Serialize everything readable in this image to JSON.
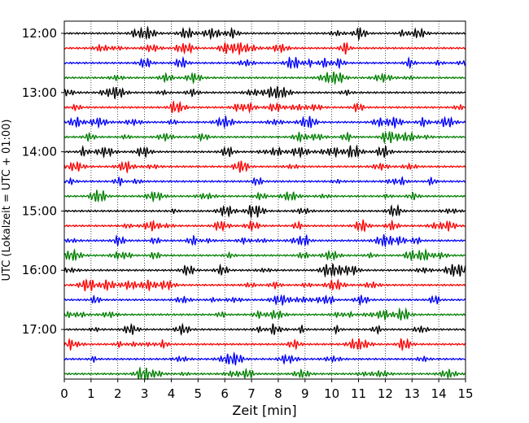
{
  "chart_data": {
    "type": "line",
    "xlabel": "Zeit  [min]",
    "ylabel": "UTC (Lokalzeit = UTC + 01:00)",
    "xlim": [
      0,
      15
    ],
    "x_ticks": [
      "0",
      "1",
      "2",
      "3",
      "4",
      "5",
      "6",
      "7",
      "8",
      "9",
      "10",
      "11",
      "12",
      "13",
      "14",
      "15"
    ],
    "y_ticks": [
      "12:00",
      "13:00",
      "14:00",
      "15:00",
      "16:00",
      "17:00"
    ],
    "grid": "vertical dotted",
    "trace_colors": [
      "#000000",
      "#ff0000",
      "#0000ff",
      "#008000"
    ],
    "traces": [
      {
        "start": "12:00",
        "color": "#000000"
      },
      {
        "start": "12:15",
        "color": "#ff0000"
      },
      {
        "start": "12:30",
        "color": "#0000ff"
      },
      {
        "start": "12:45",
        "color": "#008000"
      },
      {
        "start": "13:00",
        "color": "#000000"
      },
      {
        "start": "13:15",
        "color": "#ff0000"
      },
      {
        "start": "13:30",
        "color": "#0000ff"
      },
      {
        "start": "13:45",
        "color": "#008000"
      },
      {
        "start": "14:00",
        "color": "#000000"
      },
      {
        "start": "14:15",
        "color": "#ff0000"
      },
      {
        "start": "14:30",
        "color": "#0000ff"
      },
      {
        "start": "14:45",
        "color": "#008000"
      },
      {
        "start": "15:00",
        "color": "#000000"
      },
      {
        "start": "15:15",
        "color": "#ff0000"
      },
      {
        "start": "15:30",
        "color": "#0000ff"
      },
      {
        "start": "15:45",
        "color": "#008000"
      },
      {
        "start": "16:00",
        "color": "#000000"
      },
      {
        "start": "16:15",
        "color": "#ff0000"
      },
      {
        "start": "16:30",
        "color": "#0000ff"
      },
      {
        "start": "16:45",
        "color": "#008000"
      },
      {
        "start": "17:00",
        "color": "#000000"
      },
      {
        "start": "17:15",
        "color": "#ff0000"
      },
      {
        "start": "17:30",
        "color": "#0000ff"
      },
      {
        "start": "17:45",
        "color": "#008000"
      }
    ]
  }
}
